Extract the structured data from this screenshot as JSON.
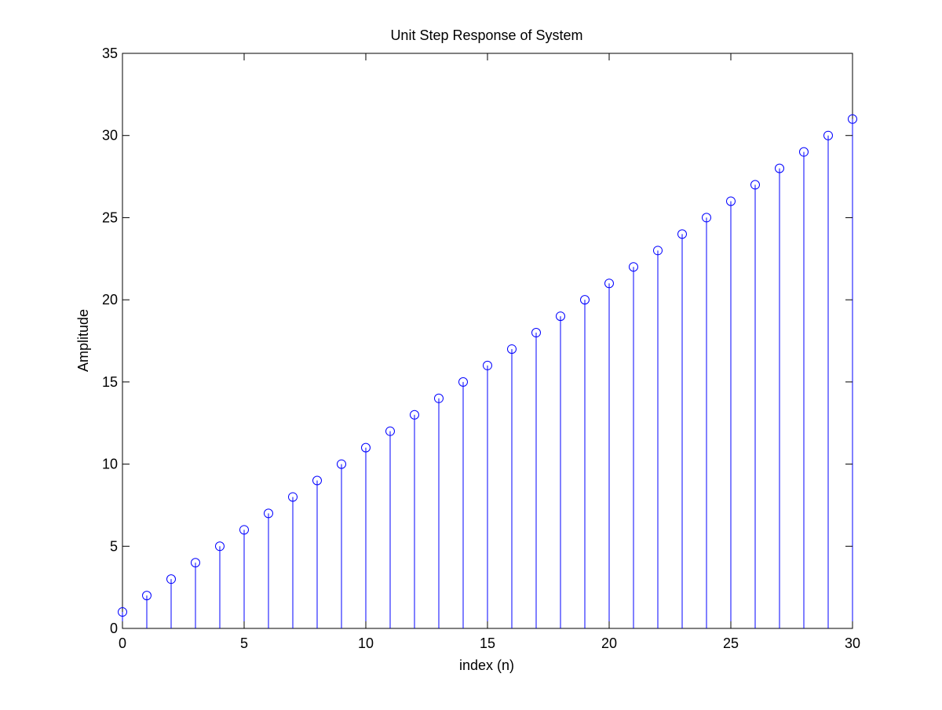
{
  "chart_data": {
    "type": "stem",
    "title": "Unit Step Response of System",
    "xlabel": "index (n)",
    "ylabel": "Amplitude",
    "xlim": [
      0,
      30
    ],
    "ylim": [
      0,
      35
    ],
    "xticks": [
      0,
      5,
      10,
      15,
      20,
      25,
      30
    ],
    "yticks": [
      0,
      5,
      10,
      15,
      20,
      25,
      30,
      35
    ],
    "x": [
      0,
      1,
      2,
      3,
      4,
      5,
      6,
      7,
      8,
      9,
      10,
      11,
      12,
      13,
      14,
      15,
      16,
      17,
      18,
      19,
      20,
      21,
      22,
      23,
      24,
      25,
      26,
      27,
      28,
      29,
      30
    ],
    "values": [
      1,
      2,
      3,
      4,
      5,
      6,
      7,
      8,
      9,
      10,
      11,
      12,
      13,
      14,
      15,
      16,
      17,
      18,
      19,
      20,
      21,
      22,
      23,
      24,
      25,
      26,
      27,
      28,
      29,
      30,
      31
    ],
    "marker": "open-circle",
    "grid": false,
    "legend": "none",
    "colors": {
      "stem": "#0000ff",
      "axes": "#000000",
      "background": "#ffffff"
    }
  }
}
